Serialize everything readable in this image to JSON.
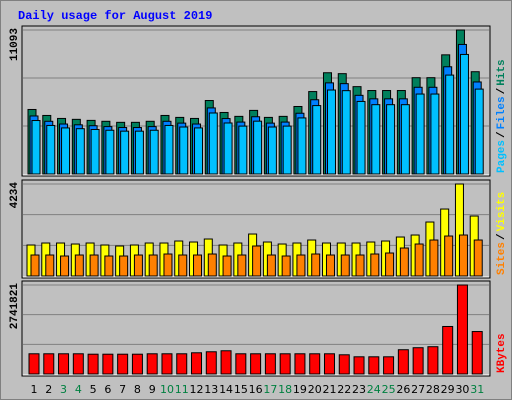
{
  "chart_data": {
    "type": "bar",
    "title": "Daily usage for August 2019",
    "categories": [
      1,
      2,
      3,
      4,
      5,
      6,
      7,
      8,
      9,
      10,
      11,
      12,
      13,
      14,
      15,
      16,
      17,
      18,
      19,
      20,
      21,
      22,
      23,
      24,
      25,
      26,
      27,
      28,
      29,
      30,
      31
    ],
    "category_colors": [
      "#000000",
      "#000000",
      "#008040",
      "#008040",
      "#000000",
      "#000000",
      "#000000",
      "#000000",
      "#000000",
      "#008040",
      "#008040",
      "#000000",
      "#000000",
      "#000000",
      "#000000",
      "#000000",
      "#008040",
      "#008040",
      "#000000",
      "#000000",
      "#000000",
      "#000000",
      "#000000",
      "#008040",
      "#008040",
      "#000000",
      "#000000",
      "#000000",
      "#000000",
      "#000000",
      "#008040"
    ],
    "label_separator": "/",
    "panels": [
      {
        "ylim": [
          0,
          11093
        ],
        "yticks": [
          11093
        ],
        "series": [
          {
            "name": "Hits",
            "color": "#00805c",
            "values": [
              4970,
              4510,
              4280,
              4210,
              4130,
              4060,
              3980,
              3980,
              4060,
              4510,
              4360,
              4280,
              5660,
              4740,
              4440,
              4900,
              4360,
              4440,
              5200,
              6350,
              7800,
              7730,
              6730,
              6430,
              6430,
              6430,
              7420,
              7420,
              9180,
              11093,
              7880
            ]
          },
          {
            "name": "Files",
            "color": "#0080ff",
            "values": [
              4470,
              4060,
              3850,
              3790,
              3720,
              3650,
              3580,
              3580,
              3650,
              4060,
              3920,
              3850,
              5090,
              4270,
              4000,
              4410,
              3920,
              4000,
              4680,
              5720,
              7020,
              6960,
              6060,
              5790,
              5790,
              5790,
              6680,
              6680,
              8260,
              9980,
              7090
            ]
          },
          {
            "name": "Pages",
            "color": "#00c0ff",
            "values": [
              4120,
              3740,
              3550,
              3490,
              3430,
              3370,
              3300,
              3300,
              3370,
              3740,
              3620,
              3550,
              4700,
              3930,
              3690,
              4070,
              3620,
              3690,
              4320,
              5270,
              6470,
              6420,
              5590,
              5340,
              5340,
              5340,
              6160,
              6160,
              7620,
              9210,
              6540
            ]
          }
        ]
      },
      {
        "ylim": [
          0,
          4234
        ],
        "yticks": [
          4234
        ],
        "series": [
          {
            "name": "Visits",
            "color": "#ffff00",
            "values": [
              1426,
              1518,
              1518,
              1472,
              1518,
              1426,
              1380,
              1426,
              1518,
              1518,
              1610,
              1564,
              1702,
              1426,
              1518,
              1932,
              1564,
              1472,
              1518,
              1656,
              1518,
              1518,
              1518,
              1564,
              1610,
              1794,
              1886,
              2484,
              3082,
              4234,
              2760
            ]
          },
          {
            "name": "Sites",
            "color": "#ff8000",
            "values": [
              966,
              966,
              920,
              966,
              966,
              920,
              920,
              966,
              966,
              1012,
              966,
              966,
              1012,
              920,
              966,
              1380,
              966,
              920,
              966,
              1012,
              966,
              966,
              966,
              1012,
              1058,
              1288,
              1472,
              1656,
              1840,
              1886,
              1656
            ]
          }
        ]
      },
      {
        "ylim": [
          0,
          2741821
        ],
        "yticks": [
          2741821
        ],
        "series": [
          {
            "name": "KBytes",
            "color": "#ff0000",
            "values": [
              623000,
              623000,
              623000,
              623000,
              610000,
              610000,
              610000,
              610000,
              623000,
              623000,
              623000,
              654000,
              685000,
              716000,
              623000,
              623000,
              623000,
              623000,
              623000,
              623000,
              623000,
              592000,
              530000,
              530000,
              530000,
              748000,
              810000,
              841000,
              1464000,
              2741821,
              1308000
            ]
          }
        ]
      }
    ]
  }
}
